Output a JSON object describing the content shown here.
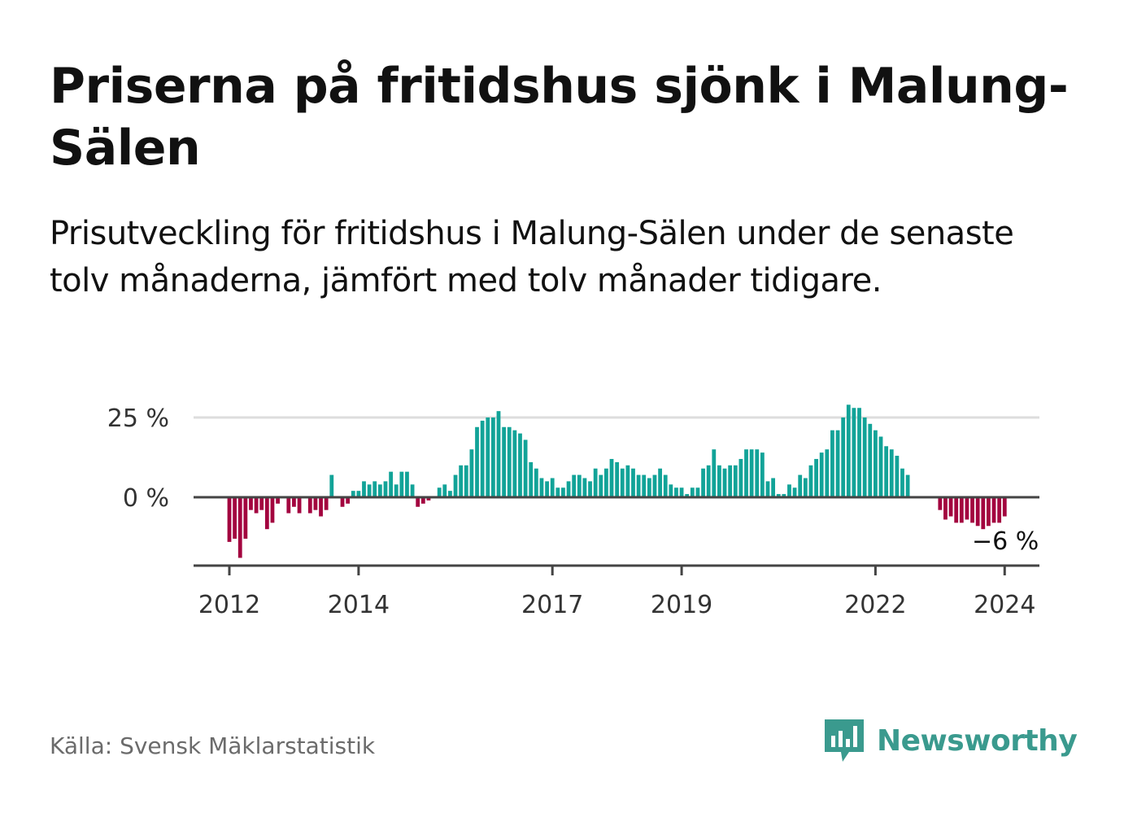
{
  "title": "Priserna på fritidshus sjönk i Malung-Sälen",
  "subtitle": "Prisutveckling för fritidshus i Malung-Sälen under de senaste tolv månaderna, jämfört med tolv månader tidigare.",
  "source": "Källa: Svensk Mäklarstatistik",
  "brand": {
    "name": "Newsworthy",
    "icon": "newsworthy-logo-icon"
  },
  "colors": {
    "positive": "#12a398",
    "negative": "#a3043f",
    "axis": "#444444",
    "grid": "#dddddd"
  },
  "chart_data": {
    "type": "bar",
    "title": "Priserna på fritidshus sjönk i Malung-Sälen",
    "xlabel": "",
    "ylabel": "",
    "unit": "%",
    "start": "2012-01",
    "frequency": "monthly",
    "ylim": [
      -22,
      27
    ],
    "yticks": [
      {
        "value": 0,
        "label": "0 %"
      },
      {
        "value": 25,
        "label": "25 %"
      }
    ],
    "xticks": [
      {
        "year": 2012,
        "label": "2012"
      },
      {
        "year": 2014,
        "label": "2014"
      },
      {
        "year": 2017,
        "label": "2017"
      },
      {
        "year": 2019,
        "label": "2019"
      },
      {
        "year": 2022,
        "label": "2022"
      },
      {
        "year": 2024,
        "label": "2024"
      }
    ],
    "values": [
      -14,
      -13,
      -19,
      -13,
      -4,
      -5,
      -4,
      -10,
      -8,
      -2,
      0,
      -5,
      -3,
      -5,
      0,
      -5,
      -4,
      -6,
      -4,
      7,
      0,
      -3,
      -2,
      2,
      2,
      5,
      4,
      5,
      4,
      5,
      8,
      4,
      8,
      8,
      4,
      -3,
      -2,
      -1,
      0,
      3,
      4,
      2,
      7,
      10,
      10,
      15,
      22,
      24,
      25,
      25,
      27,
      22,
      22,
      21,
      20,
      18,
      11,
      9,
      6,
      5,
      6,
      3,
      3,
      5,
      7,
      7,
      6,
      5,
      9,
      7,
      9,
      12,
      11,
      9,
      10,
      9,
      7,
      7,
      6,
      7,
      9,
      7,
      4,
      3,
      3,
      1,
      3,
      3,
      9,
      10,
      15,
      10,
      9,
      10,
      10,
      12,
      15,
      15,
      15,
      14,
      5,
      6,
      1,
      1,
      4,
      3,
      7,
      6,
      10,
      12,
      14,
      15,
      21,
      21,
      25,
      29,
      28,
      28,
      25,
      23,
      21,
      19,
      16,
      15,
      13,
      9,
      7,
      0,
      0,
      0,
      0,
      0,
      -4,
      -7,
      -6,
      -8,
      -8,
      -7,
      -8,
      -9,
      -10,
      -9,
      -8,
      -8,
      -6
    ],
    "annotation": {
      "label": "−6 %",
      "value": -6,
      "position": "last bar, below"
    }
  }
}
